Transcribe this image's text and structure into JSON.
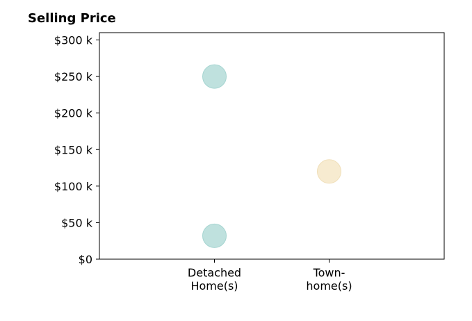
{
  "chart_data": {
    "type": "scatter",
    "title": "Selling Price",
    "xlabel": "",
    "ylabel": "",
    "categories": [
      [
        "Detached",
        "Home(s)"
      ],
      [
        "Town-",
        "home(s)"
      ]
    ],
    "ylim": [
      0,
      310000
    ],
    "yticks": [
      {
        "value": 0,
        "label": "$0"
      },
      {
        "value": 50000,
        "label": "$50 k"
      },
      {
        "value": 100000,
        "label": "$100 k"
      },
      {
        "value": 150000,
        "label": "$150 k"
      },
      {
        "value": 200000,
        "label": "$200 k"
      },
      {
        "value": 250000,
        "label": "$250 k"
      },
      {
        "value": 300000,
        "label": "$300 k"
      }
    ],
    "points": [
      {
        "category": 0,
        "y": 250000,
        "color": "#bfe1de"
      },
      {
        "category": 0,
        "y": 32000,
        "color": "#bfe1de"
      },
      {
        "category": 1,
        "y": 120000,
        "color": "#f7ebd0"
      }
    ],
    "grid": false,
    "legend": "none"
  }
}
